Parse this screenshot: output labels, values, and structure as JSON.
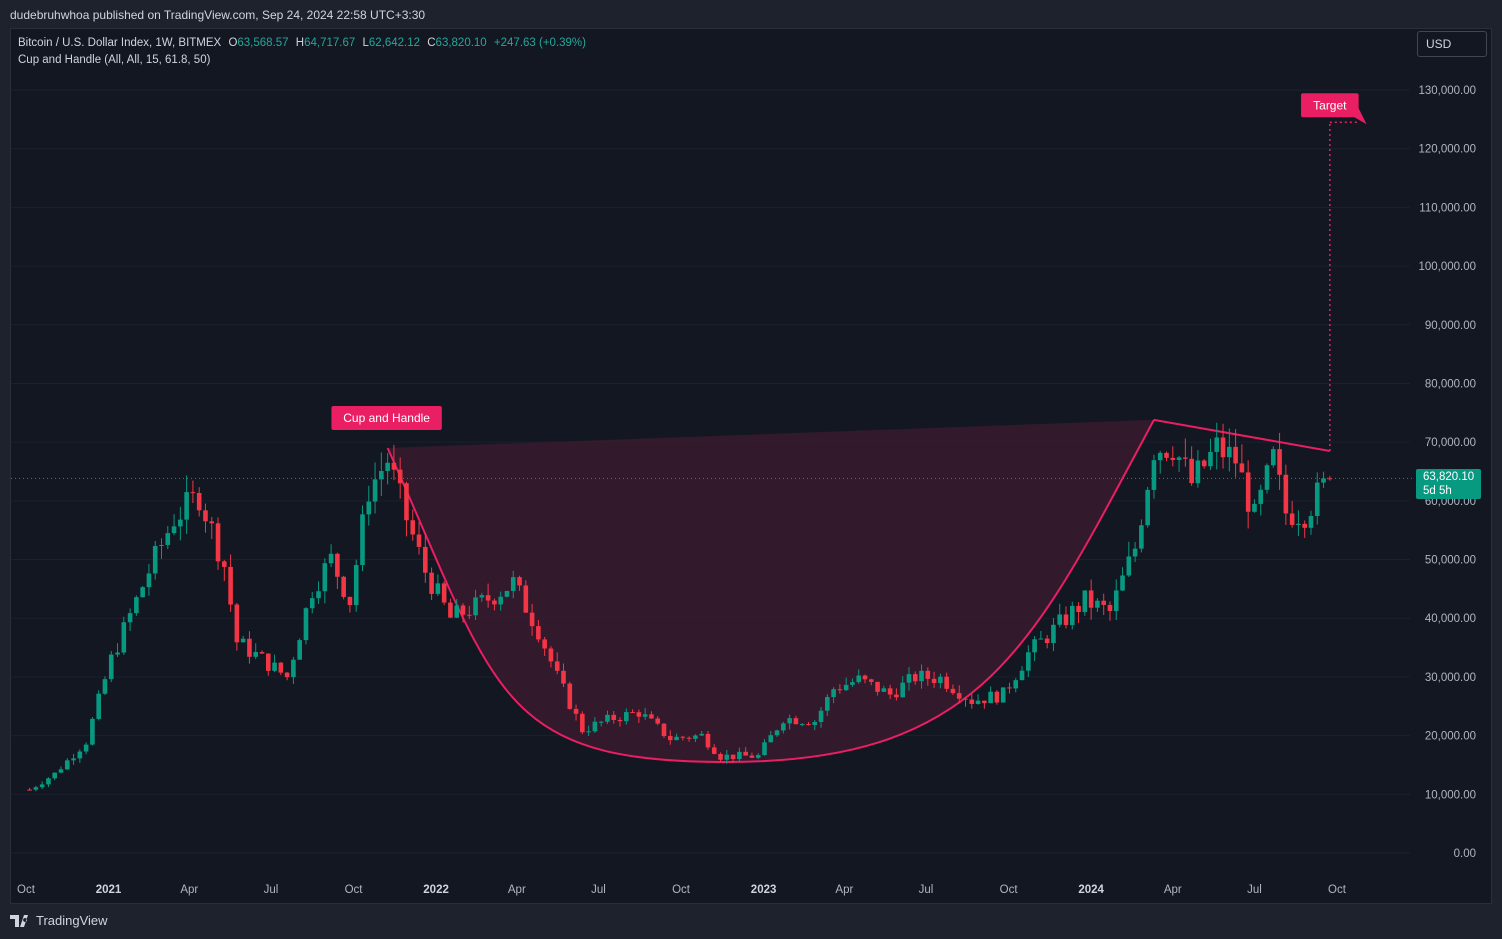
{
  "header": {
    "published_text": "dudebruhwhoa published on TradingView.com, Sep 24, 2024 22:58 UTC+3:30"
  },
  "legend": {
    "symbol": "Bitcoin / U.S. Dollar Index, 1W, BITMEX",
    "open_label": "O",
    "open": "63,568.57",
    "high_label": "H",
    "high": "64,717.67",
    "low_label": "L",
    "low": "62,642.12",
    "close_label": "C",
    "close": "63,820.10",
    "change": "+247.63 (+0.39%)",
    "indicator": "Cup and Handle (All, All, 15, 61.8, 50)"
  },
  "currency": "USD",
  "last_price": {
    "value": "63,820.10",
    "countdown": "5d 5h"
  },
  "annotations": {
    "pattern": "Cup and Handle",
    "target": "Target"
  },
  "footer": {
    "brand": "TradingView"
  },
  "colors": {
    "up": "#089981",
    "down": "#f23645",
    "pattern": "#e91e63",
    "pattern_fill": "#3a1a2e",
    "background": "#131722"
  },
  "chart_data": {
    "type": "candlestick",
    "title": "Bitcoin / U.S. Dollar Index, 1W, BITMEX",
    "x_range": [
      "2020-10-01",
      "2024-10-01"
    ],
    "ylim": [
      0,
      130000
    ],
    "y_ticks": [
      "0.00",
      "10,000.00",
      "20,000.00",
      "30,000.00",
      "40,000.00",
      "50,000.00",
      "60,000.00",
      "70,000.00",
      "80,000.00",
      "90,000.00",
      "100,000.00",
      "110,000.00",
      "120,000.00",
      "130,000.00"
    ],
    "x_ticks": [
      {
        "label": "Oct",
        "date": "2020-10-01"
      },
      {
        "label": "2021",
        "date": "2021-01-01"
      },
      {
        "label": "Apr",
        "date": "2021-04-01"
      },
      {
        "label": "Jul",
        "date": "2021-07-01"
      },
      {
        "label": "Oct",
        "date": "2021-10-01"
      },
      {
        "label": "2022",
        "date": "2022-01-01"
      },
      {
        "label": "Apr",
        "date": "2022-04-01"
      },
      {
        "label": "Jul",
        "date": "2022-07-01"
      },
      {
        "label": "Oct",
        "date": "2022-10-01"
      },
      {
        "label": "2023",
        "date": "2023-01-01"
      },
      {
        "label": "Apr",
        "date": "2023-04-01"
      },
      {
        "label": "Jul",
        "date": "2023-07-01"
      },
      {
        "label": "Oct",
        "date": "2023-10-01"
      },
      {
        "label": "2024",
        "date": "2024-01-01"
      },
      {
        "label": "Apr",
        "date": "2024-04-01"
      },
      {
        "label": "Jul",
        "date": "2024-07-01"
      },
      {
        "label": "Oct",
        "date": "2024-10-01"
      }
    ],
    "close_anchors": [
      [
        "2020-10-05",
        10800
      ],
      [
        "2020-11-02",
        13500
      ],
      [
        "2020-12-07",
        19000
      ],
      [
        "2021-01-04",
        33000
      ],
      [
        "2021-02-15",
        48000
      ],
      [
        "2021-03-15",
        57000
      ],
      [
        "2021-04-12",
        61000
      ],
      [
        "2021-05-10",
        49000
      ],
      [
        "2021-05-24",
        36000
      ],
      [
        "2021-06-21",
        33000
      ],
      [
        "2021-07-19",
        30000
      ],
      [
        "2021-08-16",
        45000
      ],
      [
        "2021-09-06",
        50000
      ],
      [
        "2021-09-27",
        43000
      ],
      [
        "2021-10-18",
        62000
      ],
      [
        "2021-11-08",
        67000
      ],
      [
        "2021-11-29",
        57000
      ],
      [
        "2021-12-20",
        48000
      ],
      [
        "2022-01-17",
        40000
      ],
      [
        "2022-02-14",
        42000
      ],
      [
        "2022-03-28",
        46000
      ],
      [
        "2022-04-25",
        38000
      ],
      [
        "2022-05-16",
        30000
      ],
      [
        "2022-06-13",
        21000
      ],
      [
        "2022-07-18",
        23000
      ],
      [
        "2022-08-15",
        24000
      ],
      [
        "2022-09-19",
        19500
      ],
      [
        "2022-10-24",
        20000
      ],
      [
        "2022-11-14",
        16500
      ],
      [
        "2022-12-26",
        16500
      ],
      [
        "2023-01-23",
        23000
      ],
      [
        "2023-02-27",
        22500
      ],
      [
        "2023-03-20",
        28000
      ],
      [
        "2023-04-17",
        29500
      ],
      [
        "2023-05-22",
        27000
      ],
      [
        "2023-06-19",
        30000
      ],
      [
        "2023-07-17",
        29800
      ],
      [
        "2023-08-21",
        26000
      ],
      [
        "2023-09-25",
        27000
      ],
      [
        "2023-10-23",
        34000
      ],
      [
        "2023-11-27",
        39000
      ],
      [
        "2023-12-25",
        43000
      ],
      [
        "2024-01-22",
        41000
      ],
      [
        "2024-02-19",
        52000
      ],
      [
        "2024-03-11",
        69000
      ],
      [
        "2024-04-01",
        69500
      ],
      [
        "2024-04-22",
        63000
      ],
      [
        "2024-05-20",
        69000
      ],
      [
        "2024-06-10",
        67000
      ],
      [
        "2024-07-01",
        57000
      ],
      [
        "2024-07-22",
        67000
      ],
      [
        "2024-08-05",
        58000
      ],
      [
        "2024-08-26",
        58000
      ],
      [
        "2024-09-23",
        63820.1
      ]
    ],
    "pattern": {
      "name": "Cup and Handle",
      "left_rim": [
        "2021-11-08",
        69000
      ],
      "cup_bottom": [
        "2022-11-21",
        15500
      ],
      "right_rim": [
        "2024-03-11",
        73800
      ],
      "handle_end": [
        "2024-09-23",
        68500
      ],
      "target": [
        "2024-09-23",
        124500
      ]
    },
    "last_close": 63820.1
  }
}
